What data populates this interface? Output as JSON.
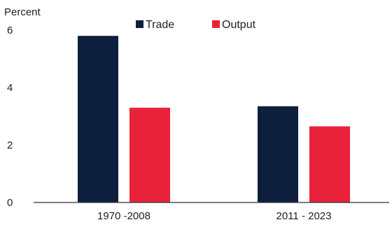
{
  "chart_data": {
    "type": "bar",
    "ylabel": "Percent",
    "ylim": [
      0,
      6
    ],
    "yticks": [
      0,
      2,
      4,
      6
    ],
    "grid": false,
    "legend_position": "top",
    "categories": [
      "1970 -2008",
      "2011 - 2023"
    ],
    "series": [
      {
        "name": "Trade",
        "color": "#0d1f3c",
        "values": [
          5.8,
          3.35
        ]
      },
      {
        "name": "Output",
        "color": "#e8223a",
        "values": [
          3.3,
          2.65
        ]
      }
    ]
  }
}
